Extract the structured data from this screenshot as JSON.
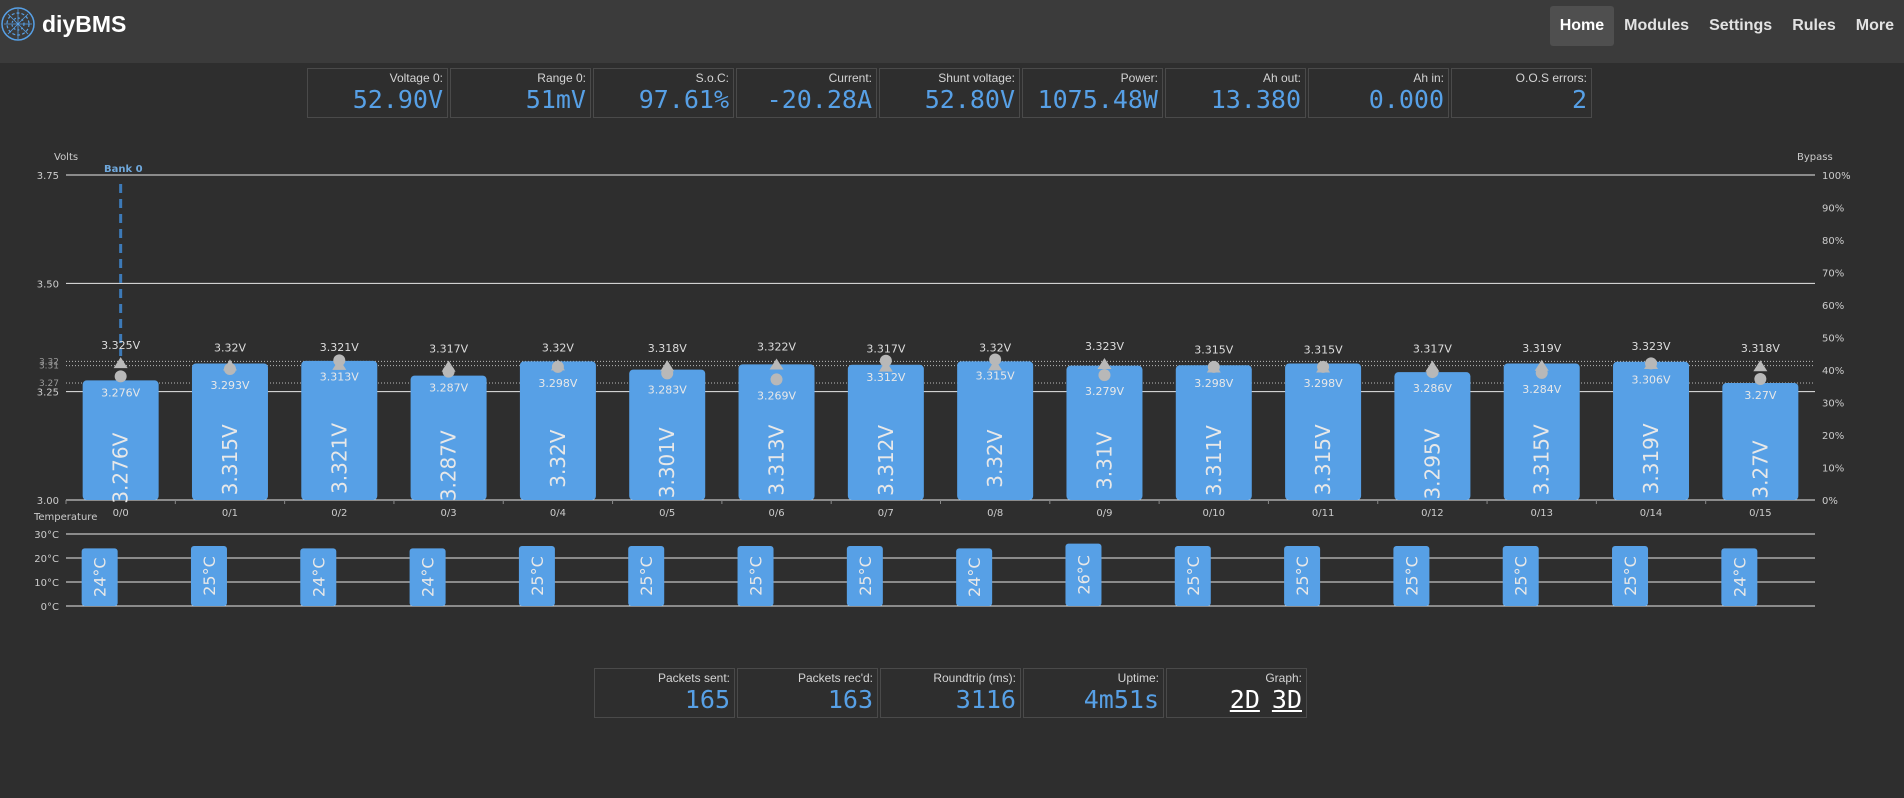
{
  "brand": {
    "name": "diyBMS"
  },
  "nav": {
    "items": [
      "Home",
      "Modules",
      "Settings",
      "Rules",
      "More"
    ],
    "active": "Home"
  },
  "top_stats": [
    {
      "label": "Voltage 0:",
      "value": "52.90V"
    },
    {
      "label": "Range 0:",
      "value": "51mV"
    },
    {
      "label": "S.o.C:",
      "value": "97.61%"
    },
    {
      "label": "Current:",
      "value": "-20.28A"
    },
    {
      "label": "Shunt voltage:",
      "value": "52.80V"
    },
    {
      "label": "Power:",
      "value": "1075.48W"
    },
    {
      "label": "Ah out:",
      "value": "13.380"
    },
    {
      "label": "Ah in:",
      "value": "0.000"
    },
    {
      "label": "O.O.S errors:",
      "value": "2"
    }
  ],
  "bottom_stats": [
    {
      "label": "Packets sent:",
      "value": "165"
    },
    {
      "label": "Packets rec'd:",
      "value": "163"
    },
    {
      "label": "Roundtrip (ms):",
      "value": "3116"
    },
    {
      "label": "Uptime:",
      "value": "4m51s"
    }
  ],
  "graph": {
    "label": "Graph:",
    "option_2d": "2D",
    "option_3d": "3D"
  },
  "colors": {
    "bar": "#57a0e6",
    "value_text": "#57a0e6",
    "marker": "#b8b8b8",
    "bank_line": "#3d7ab8"
  },
  "chart_data": {
    "type": "bar",
    "volts_label": "Volts",
    "bypass_label": "Bypass",
    "temperature_label": "Temperature",
    "bank_label": "Bank 0",
    "ylim": [
      3.0,
      3.75
    ],
    "y_ticks": [
      "3.00",
      "3.25",
      "3.50",
      "3.75"
    ],
    "y_tick_values": [
      3.0,
      3.25,
      3.5,
      3.75
    ],
    "y_minor_ticks": [
      "3.27",
      "3.31",
      "3.32"
    ],
    "y_minor_values": [
      3.27,
      3.31,
      3.32
    ],
    "bypass_ticks": [
      "0%",
      "10%",
      "20%",
      "30%",
      "40%",
      "50%",
      "60%",
      "70%",
      "80%",
      "90%",
      "100%"
    ],
    "temp_ylim": [
      0,
      30
    ],
    "temp_ticks": [
      "0°C",
      "10°C",
      "20°C",
      "30°C"
    ],
    "temp_tick_values": [
      0,
      10,
      20,
      30
    ],
    "categories": [
      "0/0",
      "0/1",
      "0/2",
      "0/3",
      "0/4",
      "0/5",
      "0/6",
      "0/7",
      "0/8",
      "0/9",
      "0/10",
      "0/11",
      "0/12",
      "0/13",
      "0/14",
      "0/15"
    ],
    "voltage": [
      3.276,
      3.315,
      3.321,
      3.287,
      3.32,
      3.301,
      3.313,
      3.312,
      3.32,
      3.31,
      3.311,
      3.315,
      3.295,
      3.315,
      3.319,
      3.27
    ],
    "voltage_labels": [
      "3.276V",
      "3.315V",
      "3.321V",
      "3.287V",
      "3.32V",
      "3.301V",
      "3.313V",
      "3.312V",
      "3.32V",
      "3.31V",
      "3.311V",
      "3.315V",
      "3.295V",
      "3.315V",
      "3.319V",
      "3.27V"
    ],
    "max_voltage": [
      3.325,
      3.32,
      3.321,
      3.317,
      3.32,
      3.318,
      3.322,
      3.317,
      3.32,
      3.323,
      3.315,
      3.315,
      3.317,
      3.319,
      3.323,
      3.318
    ],
    "max_voltage_labels": [
      "3.325V",
      "3.32V",
      "3.321V",
      "3.317V",
      "3.32V",
      "3.318V",
      "3.322V",
      "3.317V",
      "3.32V",
      "3.323V",
      "3.315V",
      "3.315V",
      "3.317V",
      "3.319V",
      "3.323V",
      "3.318V"
    ],
    "min_voltage": [
      3.276,
      3.293,
      3.313,
      3.287,
      3.298,
      3.283,
      3.269,
      3.312,
      3.315,
      3.279,
      3.298,
      3.298,
      3.286,
      3.284,
      3.306,
      3.27
    ],
    "min_voltage_labels": [
      "3.276V",
      "3.293V",
      "3.313V",
      "3.287V",
      "3.298V",
      "3.283V",
      "3.269V",
      "3.312V",
      "3.315V",
      "3.279V",
      "3.298V",
      "3.298V",
      "3.286V",
      "3.284V",
      "3.306V",
      "3.27V"
    ],
    "temperature": [
      24,
      25,
      24,
      24,
      25,
      25,
      25,
      25,
      24,
      26,
      25,
      25,
      25,
      25,
      25,
      24
    ],
    "temperature_labels": [
      "24°C",
      "25°C",
      "24°C",
      "24°C",
      "25°C",
      "25°C",
      "25°C",
      "25°C",
      "24°C",
      "26°C",
      "25°C",
      "25°C",
      "25°C",
      "25°C",
      "25°C",
      "24°C"
    ]
  }
}
